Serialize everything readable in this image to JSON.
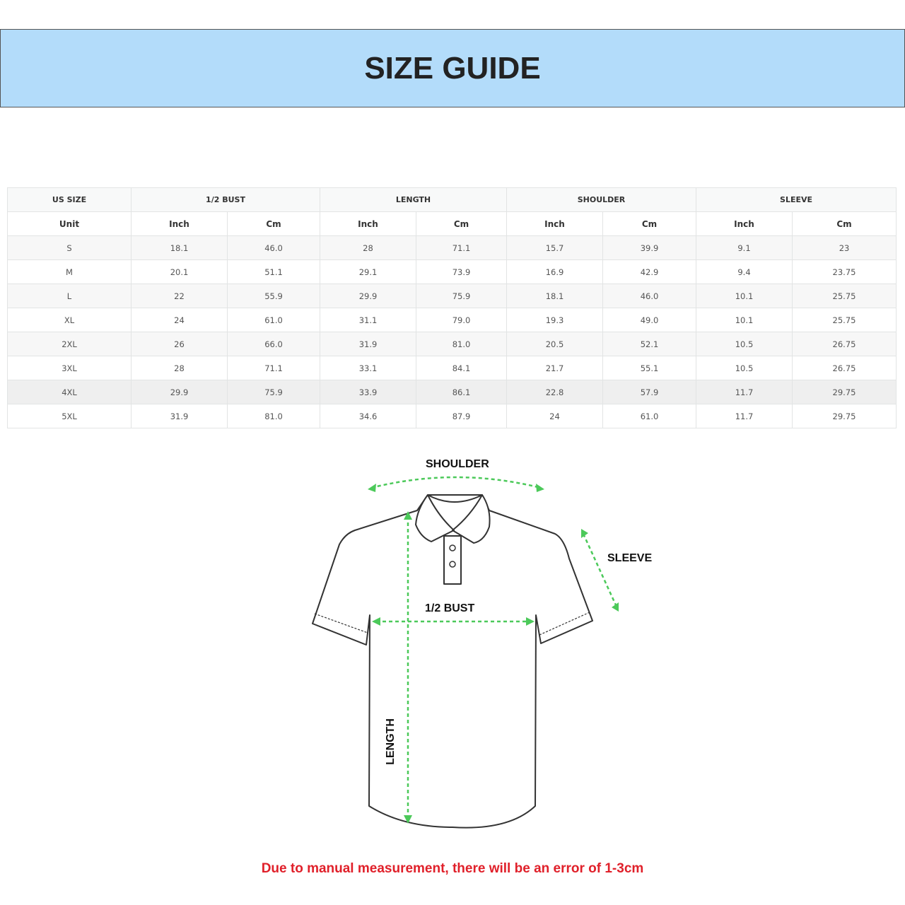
{
  "title": "SIZE GUIDE",
  "table": {
    "groups": [
      "US SIZE",
      "1/2 BUST",
      "LENGTH",
      "SHOULDER",
      "SLEEVE"
    ],
    "units": [
      "Unit",
      "Inch",
      "Cm",
      "Inch",
      "Cm",
      "Inch",
      "Cm",
      "Inch",
      "Cm"
    ],
    "rows": [
      [
        "S",
        "18.1",
        "46.0",
        "28",
        "71.1",
        "15.7",
        "39.9",
        "9.1",
        "23"
      ],
      [
        "M",
        "20.1",
        "51.1",
        "29.1",
        "73.9",
        "16.9",
        "42.9",
        "9.4",
        "23.75"
      ],
      [
        "L",
        "22",
        "55.9",
        "29.9",
        "75.9",
        "18.1",
        "46.0",
        "10.1",
        "25.75"
      ],
      [
        "XL",
        "24",
        "61.0",
        "31.1",
        "79.0",
        "19.3",
        "49.0",
        "10.1",
        "25.75"
      ],
      [
        "2XL",
        "26",
        "66.0",
        "31.9",
        "81.0",
        "20.5",
        "52.1",
        "10.5",
        "26.75"
      ],
      [
        "3XL",
        "28",
        "71.1",
        "33.1",
        "84.1",
        "21.7",
        "55.1",
        "10.5",
        "26.75"
      ],
      [
        "4XL",
        "29.9",
        "75.9",
        "33.9",
        "86.1",
        "22.8",
        "57.9",
        "11.7",
        "29.75"
      ],
      [
        "5XL",
        "31.9",
        "81.0",
        "34.6",
        "87.9",
        "24",
        "61.0",
        "11.7",
        "29.75"
      ]
    ]
  },
  "diagram": {
    "shoulder_label": "SHOULDER",
    "sleeve_label": "SLEEVE",
    "bust_label": "1/2 BUST",
    "length_label": "LENGTH",
    "arrow_color": "#4cc95a"
  },
  "note": "Due to manual measurement, there will be an error of 1-3cm",
  "colors": {
    "banner": "#b3dcfa",
    "note": "#e0202a"
  }
}
